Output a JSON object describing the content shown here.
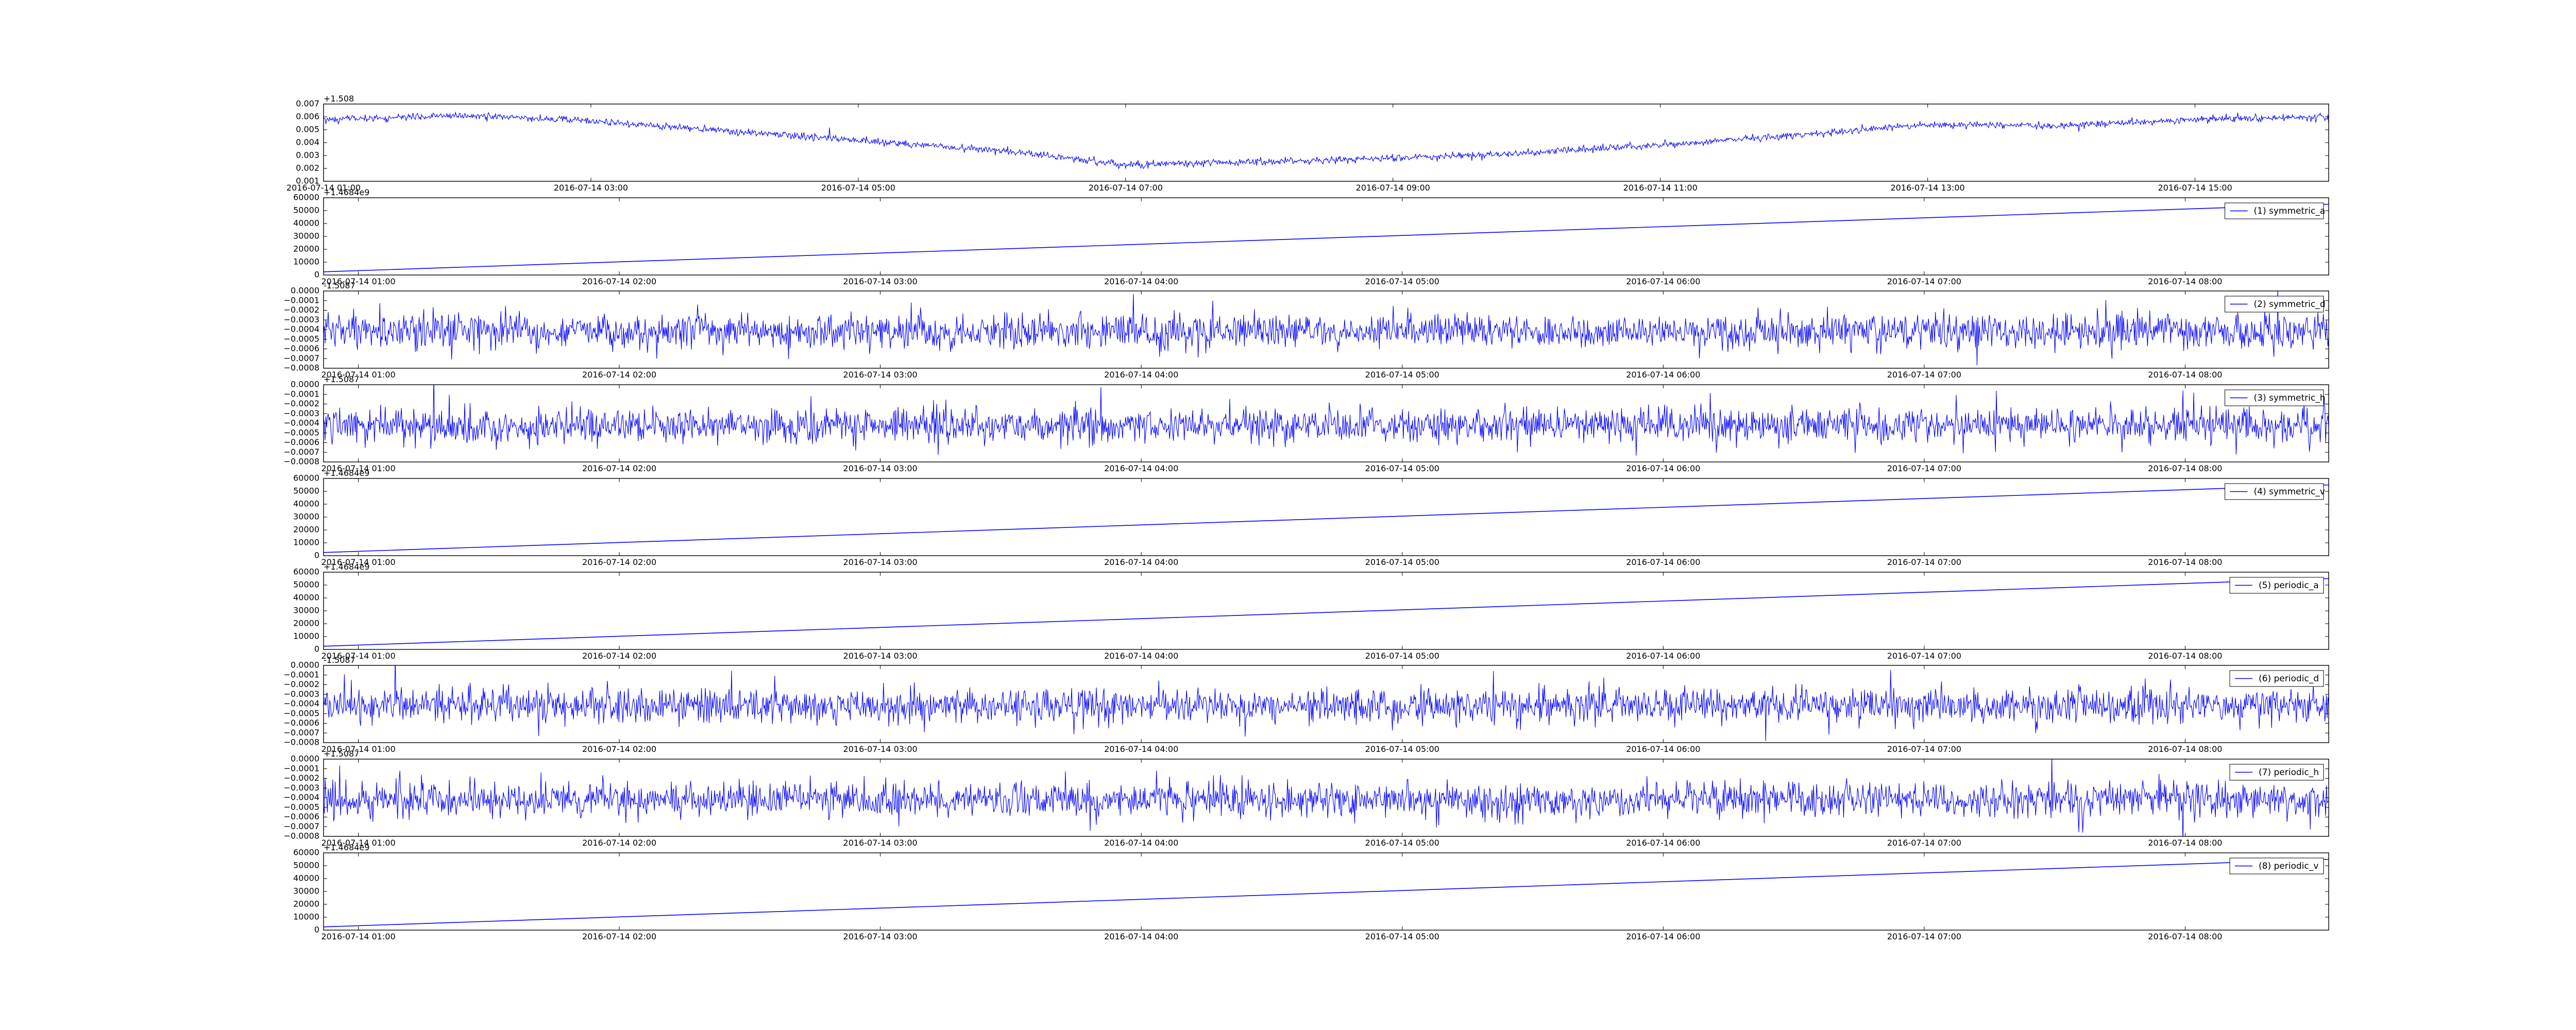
{
  "colors": {
    "line": "#0000ff",
    "axes": "#000000",
    "background": "#ffffff",
    "legend_border": "#000000"
  },
  "chart_data": [
    {
      "type": "line",
      "title": "",
      "xlabel": "",
      "ylabel": "",
      "offset_text": "+1.508",
      "xlim": [
        "2016-07-14 01:00",
        "2016-07-14 16:00"
      ],
      "ylim": [
        0.001,
        0.007
      ],
      "xticks": [
        "2016-07-14 01:00",
        "2016-07-14 03:00",
        "2016-07-14 05:00",
        "2016-07-14 07:00",
        "2016-07-14 09:00",
        "2016-07-14 11:00",
        "2016-07-14 13:00",
        "2016-07-14 15:00"
      ],
      "yticks": [
        "0.001",
        "0.002",
        "0.003",
        "0.004",
        "0.005",
        "0.006",
        "0.007"
      ],
      "grid": false,
      "legend": null,
      "series": [
        {
          "x": [
            "2016-07-14 01:00",
            "2016-07-14 02:00",
            "2016-07-14 03:00",
            "2016-07-14 04:00",
            "2016-07-14 05:00",
            "2016-07-14 06:00",
            "2016-07-14 07:00",
            "2016-07-14 08:00",
            "2016-07-14 09:00",
            "2016-07-14 10:00",
            "2016-07-14 11:00",
            "2016-07-14 12:00",
            "2016-07-14 13:00",
            "2016-07-14 14:00",
            "2016-07-14 15:00",
            "2016-07-14 16:00"
          ],
          "values": [
            0.0058,
            0.0061,
            0.0057,
            0.0049,
            0.0042,
            0.0034,
            0.0023,
            0.0025,
            0.0028,
            0.0032,
            0.0038,
            0.0046,
            0.0054,
            0.0053,
            0.0058,
            0.006
          ],
          "noise": 0.0003
        }
      ]
    },
    {
      "type": "line",
      "title": "",
      "xlabel": "",
      "ylabel": "",
      "offset_text": "+1.4684e9",
      "xlim": [
        "2016-07-14 00:52",
        "2016-07-14 08:33"
      ],
      "ylim": [
        0,
        60000
      ],
      "xticks": [
        "2016-07-14 01:00",
        "2016-07-14 02:00",
        "2016-07-14 03:00",
        "2016-07-14 04:00",
        "2016-07-14 05:00",
        "2016-07-14 06:00",
        "2016-07-14 07:00",
        "2016-07-14 08:00"
      ],
      "yticks": [
        "0",
        "10000",
        "20000",
        "30000",
        "40000",
        "50000",
        "60000"
      ],
      "grid": false,
      "legend": "upper right",
      "series": [
        {
          "name": "(1) symmetric_a",
          "x": [
            "2016-07-14 00:52",
            "2016-07-14 08:33"
          ],
          "values": [
            2500,
            55000
          ],
          "noise": 0
        }
      ]
    },
    {
      "type": "line",
      "title": "",
      "xlabel": "",
      "ylabel": "",
      "offset_text": "-1.5087",
      "xlim": [
        "2016-07-14 00:52",
        "2016-07-14 08:33"
      ],
      "ylim": [
        -0.0008,
        0.0
      ],
      "xticks": [
        "2016-07-14 01:00",
        "2016-07-14 02:00",
        "2016-07-14 03:00",
        "2016-07-14 04:00",
        "2016-07-14 05:00",
        "2016-07-14 06:00",
        "2016-07-14 07:00",
        "2016-07-14 08:00"
      ],
      "yticks": [
        "−0.0008",
        "−0.0007",
        "−0.0006",
        "−0.0005",
        "−0.0004",
        "−0.0003",
        "−0.0002",
        "−0.0001",
        "0.0000"
      ],
      "grid": false,
      "legend": "upper right",
      "series": [
        {
          "name": "(2) symmetric_d",
          "x": [
            "2016-07-14 00:52",
            "2016-07-14 08:33"
          ],
          "values": [
            -0.00042,
            -0.00042
          ],
          "noise": 0.0002
        }
      ]
    },
    {
      "type": "line",
      "title": "",
      "xlabel": "",
      "ylabel": "",
      "offset_text": "+1.5087",
      "xlim": [
        "2016-07-14 00:52",
        "2016-07-14 08:33"
      ],
      "ylim": [
        -0.0008,
        0.0
      ],
      "xticks": [
        "2016-07-14 01:00",
        "2016-07-14 02:00",
        "2016-07-14 03:00",
        "2016-07-14 04:00",
        "2016-07-14 05:00",
        "2016-07-14 06:00",
        "2016-07-14 07:00",
        "2016-07-14 08:00"
      ],
      "yticks": [
        "−0.0008",
        "−0.0007",
        "−0.0006",
        "−0.0005",
        "−0.0004",
        "−0.0003",
        "−0.0002",
        "−0.0001",
        "0.0000"
      ],
      "grid": false,
      "legend": "upper right",
      "series": [
        {
          "name": "(3) symmetric_h",
          "x": [
            "2016-07-14 00:52",
            "2016-07-14 08:33"
          ],
          "values": [
            -0.00042,
            -0.00042
          ],
          "noise": 0.0002
        }
      ]
    },
    {
      "type": "line",
      "title": "",
      "xlabel": "",
      "ylabel": "",
      "offset_text": "+1.4684e9",
      "xlim": [
        "2016-07-14 00:52",
        "2016-07-14 08:33"
      ],
      "ylim": [
        0,
        60000
      ],
      "xticks": [
        "2016-07-14 01:00",
        "2016-07-14 02:00",
        "2016-07-14 03:00",
        "2016-07-14 04:00",
        "2016-07-14 05:00",
        "2016-07-14 06:00",
        "2016-07-14 07:00",
        "2016-07-14 08:00"
      ],
      "yticks": [
        "0",
        "10000",
        "20000",
        "30000",
        "40000",
        "50000",
        "60000"
      ],
      "grid": false,
      "legend": "upper right",
      "series": [
        {
          "name": "(4) symmetric_v",
          "x": [
            "2016-07-14 00:52",
            "2016-07-14 08:33"
          ],
          "values": [
            2500,
            55000
          ],
          "noise": 0
        }
      ]
    },
    {
      "type": "line",
      "title": "",
      "xlabel": "",
      "ylabel": "",
      "offset_text": "+1.4684e9",
      "xlim": [
        "2016-07-14 00:52",
        "2016-07-14 08:33"
      ],
      "ylim": [
        0,
        60000
      ],
      "xticks": [
        "2016-07-14 01:00",
        "2016-07-14 02:00",
        "2016-07-14 03:00",
        "2016-07-14 04:00",
        "2016-07-14 05:00",
        "2016-07-14 06:00",
        "2016-07-14 07:00",
        "2016-07-14 08:00"
      ],
      "yticks": [
        "0",
        "10000",
        "20000",
        "30000",
        "40000",
        "50000",
        "60000"
      ],
      "grid": false,
      "legend": "upper right",
      "series": [
        {
          "name": "(5) periodic_a",
          "x": [
            "2016-07-14 00:52",
            "2016-07-14 08:33"
          ],
          "values": [
            2500,
            55000
          ],
          "noise": 0
        }
      ]
    },
    {
      "type": "line",
      "title": "",
      "xlabel": "",
      "ylabel": "",
      "offset_text": "-1.5087",
      "xlim": [
        "2016-07-14 00:52",
        "2016-07-14 08:33"
      ],
      "ylim": [
        -0.0008,
        0.0
      ],
      "xticks": [
        "2016-07-14 01:00",
        "2016-07-14 02:00",
        "2016-07-14 03:00",
        "2016-07-14 04:00",
        "2016-07-14 05:00",
        "2016-07-14 06:00",
        "2016-07-14 07:00",
        "2016-07-14 08:00"
      ],
      "yticks": [
        "−0.0008",
        "−0.0007",
        "−0.0006",
        "−0.0005",
        "−0.0004",
        "−0.0003",
        "−0.0002",
        "−0.0001",
        "0.0000"
      ],
      "grid": false,
      "legend": "upper right",
      "series": [
        {
          "name": "(6) periodic_d",
          "x": [
            "2016-07-14 00:52",
            "2016-07-14 08:33"
          ],
          "values": [
            -0.00042,
            -0.00042
          ],
          "noise": 0.0002
        }
      ]
    },
    {
      "type": "line",
      "title": "",
      "xlabel": "",
      "ylabel": "",
      "offset_text": "+1.5087",
      "xlim": [
        "2016-07-14 00:52",
        "2016-07-14 08:33"
      ],
      "ylim": [
        -0.0008,
        0.0
      ],
      "xticks": [
        "2016-07-14 01:00",
        "2016-07-14 02:00",
        "2016-07-14 03:00",
        "2016-07-14 04:00",
        "2016-07-14 05:00",
        "2016-07-14 06:00",
        "2016-07-14 07:00",
        "2016-07-14 08:00"
      ],
      "yticks": [
        "−0.0008",
        "−0.0007",
        "−0.0006",
        "−0.0005",
        "−0.0004",
        "−0.0003",
        "−0.0002",
        "−0.0001",
        "0.0000"
      ],
      "grid": false,
      "legend": "upper right",
      "series": [
        {
          "name": "(7) periodic_h",
          "x": [
            "2016-07-14 00:52",
            "2016-07-14 08:33"
          ],
          "values": [
            -0.00042,
            -0.00042
          ],
          "noise": 0.0002
        }
      ]
    },
    {
      "type": "line",
      "title": "",
      "xlabel": "",
      "ylabel": "",
      "offset_text": "+1.4684e9",
      "xlim": [
        "2016-07-14 00:52",
        "2016-07-14 08:33"
      ],
      "ylim": [
        0,
        60000
      ],
      "xticks": [
        "2016-07-14 01:00",
        "2016-07-14 02:00",
        "2016-07-14 03:00",
        "2016-07-14 04:00",
        "2016-07-14 05:00",
        "2016-07-14 06:00",
        "2016-07-14 07:00",
        "2016-07-14 08:00"
      ],
      "yticks": [
        "0",
        "10000",
        "20000",
        "30000",
        "40000",
        "50000",
        "60000"
      ],
      "grid": false,
      "legend": "upper right",
      "series": [
        {
          "name": "(8) periodic_v",
          "x": [
            "2016-07-14 00:52",
            "2016-07-14 08:33"
          ],
          "values": [
            2500,
            55000
          ],
          "noise": 0
        }
      ]
    }
  ]
}
